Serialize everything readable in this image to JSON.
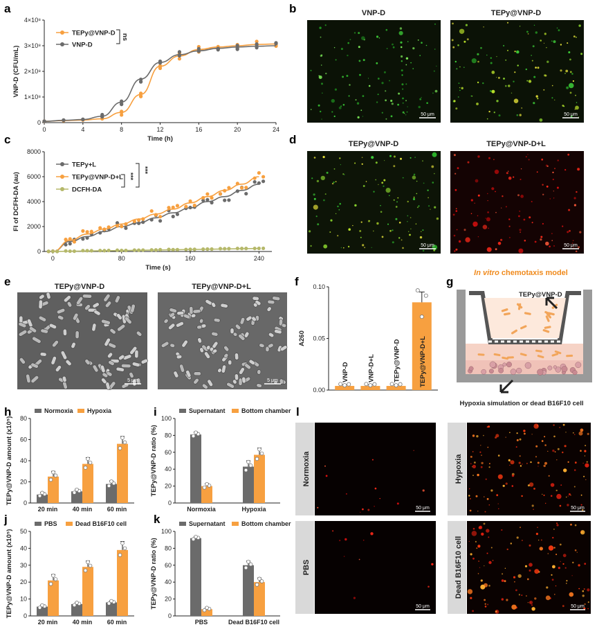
{
  "colors": {
    "gray": "#6b6b6b",
    "orange": "#f7a040",
    "olive": "#b5b86a",
    "panel_bg": "#d9d9d9"
  },
  "panels": {
    "a": {
      "letter": "a"
    },
    "b": {
      "letter": "b"
    },
    "c": {
      "letter": "c"
    },
    "d": {
      "letter": "d"
    },
    "e": {
      "letter": "e"
    },
    "f": {
      "letter": "f"
    },
    "g": {
      "letter": "g"
    },
    "h": {
      "letter": "h"
    },
    "i": {
      "letter": "i"
    },
    "j": {
      "letter": "j"
    },
    "k": {
      "letter": "k"
    },
    "l": {
      "letter": "l"
    }
  },
  "panel_b": {
    "titles": [
      "VNP-D",
      "TEPy@VNP-D"
    ],
    "scale_bar": "50 μm"
  },
  "panel_d": {
    "titles": [
      "TEPy@VNP-D",
      "TEPy@VNP-D+L"
    ],
    "scale_bar": "50 μm"
  },
  "panel_e": {
    "titles": [
      "TEPy@VNP-D",
      "TEPy@VNP-D+L"
    ],
    "scale_bar": "5 μm"
  },
  "panel_g": {
    "title_italic": "In vitro",
    "title_rest": " chemotaxis model",
    "top_label": "TEPy@VNP-D",
    "bottom_label": "Hypoxia simulation or dead B16F10 cell"
  },
  "panel_l": {
    "row_labels": [
      "Normoxia",
      "Hypoxia",
      "PBS",
      "Dead B16F10 cell"
    ],
    "scale_bar": "50 μm"
  },
  "chart_data": [
    {
      "id": "a",
      "type": "line",
      "xlabel": "Time (h)",
      "ylabel": "VNP-D (CFU/mL)",
      "xlim": [
        0,
        24
      ],
      "xticks": [
        "0",
        "4",
        "8",
        "12",
        "16",
        "20",
        "24"
      ],
      "ylim": [
        0,
        400000000
      ],
      "yticks": [
        "0",
        "1×10⁸",
        "2×10⁸",
        "3×10⁸",
        "4×10⁸"
      ],
      "annotation": "ns",
      "series": [
        {
          "name": "TEPy@VNP-D",
          "color": "#f7a040",
          "x": [
            0,
            2,
            4,
            6,
            8,
            10,
            12,
            14,
            16,
            18,
            20,
            22,
            24
          ],
          "values": [
            5000000,
            8000000,
            10000000,
            15000000,
            40000000,
            110000000,
            220000000,
            260000000,
            285000000,
            295000000,
            300000000,
            305000000,
            307000000
          ]
        },
        {
          "name": "VNP-D",
          "color": "#6b6b6b",
          "x": [
            0,
            2,
            4,
            6,
            8,
            10,
            12,
            14,
            16,
            18,
            20,
            22,
            24
          ],
          "values": [
            5000000,
            9000000,
            12000000,
            25000000,
            80000000,
            170000000,
            235000000,
            265000000,
            280000000,
            290000000,
            295000000,
            298000000,
            300000000
          ]
        }
      ]
    },
    {
      "id": "c",
      "type": "line",
      "xlabel": "Time (s)",
      "ylabel": "FI of DCFH-DA (au)",
      "xlim": [
        -10,
        255
      ],
      "xticks": [
        "0",
        "80",
        "160",
        "240"
      ],
      "ylim": [
        0,
        8000
      ],
      "yticks": [
        "0",
        "2000",
        "4000",
        "6000",
        "8000"
      ],
      "annotations": [
        "***",
        "***"
      ],
      "series": [
        {
          "name": "TEPy+L",
          "color": "#6b6b6b",
          "x": [
            0,
            20,
            40,
            60,
            80,
            100,
            120,
            140,
            160,
            180,
            200,
            220,
            240
          ],
          "values": [
            0,
            800,
            1200,
            1600,
            2000,
            2300,
            2700,
            3100,
            3500,
            4000,
            4400,
            4900,
            5400
          ]
        },
        {
          "name": "TEPy@VNP-D+L",
          "color": "#f7a040",
          "x": [
            0,
            20,
            40,
            60,
            80,
            100,
            120,
            140,
            160,
            180,
            200,
            220,
            240
          ],
          "values": [
            0,
            900,
            1400,
            1800,
            2200,
            2600,
            3000,
            3400,
            3900,
            4400,
            4900,
            5400,
            6000
          ]
        },
        {
          "name": "DCFH-DA",
          "color": "#b5b86a",
          "x": [
            0,
            20,
            40,
            60,
            80,
            100,
            120,
            140,
            160,
            180,
            200,
            220,
            240
          ],
          "values": [
            0,
            20,
            40,
            60,
            80,
            100,
            120,
            140,
            160,
            180,
            200,
            220,
            240
          ]
        }
      ]
    },
    {
      "id": "f",
      "type": "bar",
      "ylabel": "A260",
      "ylim": [
        0,
        0.1
      ],
      "yticks": [
        "0.00",
        "0.05",
        "0.10"
      ],
      "categories": [
        "VNP-D",
        "VNP-D+L",
        "TEPy@VNP-D",
        "TEPy@VNP-D+L"
      ],
      "values": [
        0.004,
        0.004,
        0.004,
        0.085
      ],
      "errors": [
        0.001,
        0.001,
        0.001,
        0.01
      ],
      "color": "#f7a040"
    },
    {
      "id": "h",
      "type": "bar",
      "ylabel": "TEPy@VNP-D amount (x10⁵)",
      "ylim": [
        0,
        80
      ],
      "yticks": [
        "0",
        "20",
        "40",
        "60",
        "80"
      ],
      "categories": [
        "20 min",
        "40 min",
        "60 min"
      ],
      "series": [
        {
          "name": "Normoxia",
          "color": "#6b6b6b",
          "values": [
            8,
            11,
            18
          ],
          "errors": [
            2,
            2,
            3
          ]
        },
        {
          "name": "Hypoxia",
          "color": "#f7a040",
          "values": [
            25,
            37,
            56
          ],
          "errors": [
            5,
            6,
            7
          ]
        }
      ]
    },
    {
      "id": "i",
      "type": "bar",
      "ylabel": "TEPy@VNP-D ratio (%)",
      "ylim": [
        0,
        100
      ],
      "yticks": [
        "0",
        "20",
        "40",
        "60",
        "80",
        "100"
      ],
      "categories": [
        "Normoxia",
        "Hypoxia"
      ],
      "series": [
        {
          "name": "Supernatant",
          "color": "#6b6b6b",
          "values": [
            81,
            43
          ],
          "errors": [
            3,
            7
          ]
        },
        {
          "name": "Bottom chamber",
          "color": "#f7a040",
          "values": [
            20,
            57
          ],
          "errors": [
            3,
            8
          ]
        }
      ]
    },
    {
      "id": "j",
      "type": "bar",
      "ylabel": "TEPy@VNP-D amount (x10⁵)",
      "ylim": [
        0,
        50
      ],
      "yticks": [
        "0",
        "10",
        "20",
        "30",
        "40",
        "50"
      ],
      "categories": [
        "20 min",
        "40 min",
        "60 min"
      ],
      "series": [
        {
          "name": "PBS",
          "color": "#6b6b6b",
          "values": [
            5.5,
            7,
            8
          ],
          "errors": [
            1,
            1,
            1
          ]
        },
        {
          "name": "Dead B16F10 cell",
          "color": "#f7a040",
          "values": [
            21,
            29,
            39
          ],
          "errors": [
            3.5,
            3.5,
            5
          ]
        }
      ]
    },
    {
      "id": "k",
      "type": "bar",
      "ylabel": "TEPy@VNP-D ratio (%)",
      "ylim": [
        0,
        100
      ],
      "yticks": [
        "0",
        "20",
        "40",
        "60",
        "80",
        "100"
      ],
      "categories": [
        "PBS",
        "Dead B16F10 cell"
      ],
      "series": [
        {
          "name": "Supernatant",
          "color": "#6b6b6b",
          "values": [
            92,
            60
          ],
          "errors": [
            2,
            5
          ]
        },
        {
          "name": "Bottom chamber",
          "color": "#f7a040",
          "values": [
            8,
            40
          ],
          "errors": [
            2,
            5
          ]
        }
      ]
    }
  ]
}
